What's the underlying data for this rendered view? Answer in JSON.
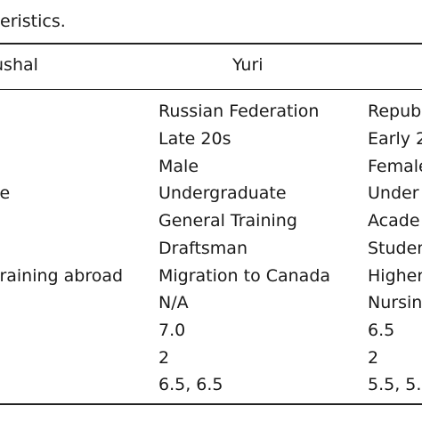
{
  "caption": "eristics.",
  "header": {
    "col0": "ushal",
    "col1": "Yuri"
  },
  "rows": [
    {
      "c0": "",
      "c1": "Russian Federation",
      "c2": "Repub"
    },
    {
      "c0": "",
      "c1": "Late 20s",
      "c2": "Early 2"
    },
    {
      "c0": "",
      "c1": "Male",
      "c2": "Female"
    },
    {
      "c0": "te",
      "c1": "Undergraduate",
      "c2": "Under"
    },
    {
      "c0": "",
      "c1": "General Training",
      "c2": "Acade"
    },
    {
      "c0": "",
      "c1": "Draftsman",
      "c2": "Studen"
    },
    {
      "c0": "training abroad",
      "c1": "Migration to Canada",
      "c2": "Higher"
    },
    {
      "c0": "",
      "c1": "N/A",
      "c2": "Nursin"
    },
    {
      "c0": "",
      "c1": "7.0",
      "c2": "6.5"
    },
    {
      "c0": "",
      "c1": "2",
      "c2": "2"
    },
    {
      "c0": "",
      "c1": "6.5, 6.5",
      "c2": "5.5, 5.."
    }
  ]
}
